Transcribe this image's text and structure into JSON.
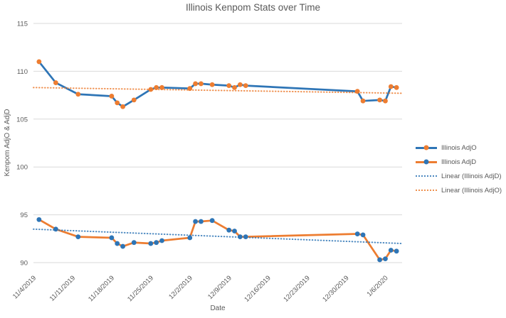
{
  "chart_data": {
    "type": "line",
    "title": "Illinois Kenpom Stats over Time",
    "xlabel": "Date",
    "ylabel": "Kenpom AdjO & AdjD",
    "ylim": [
      90,
      115
    ],
    "yticks": [
      115,
      110,
      105,
      100,
      95,
      90
    ],
    "grid": "horizontal-only",
    "legend_position": "right",
    "xticks": [
      "11/4/2019",
      "11/11/2019",
      "11/18/2019",
      "11/25/2019",
      "12/2/2019",
      "12/9/2019",
      "12/16/2019",
      "12/23/2019",
      "12/30/2019",
      "1/6/2020"
    ],
    "x_tick_days": [
      0,
      7,
      14,
      21,
      28,
      35,
      42,
      49,
      56,
      63
    ],
    "x_domain_days": [
      0,
      66
    ],
    "x_dates": [
      "11/5/2019",
      "11/8/2019",
      "11/12/2019",
      "11/18/2019",
      "11/19/2019",
      "11/20/2019",
      "11/22/2019",
      "11/25/2019",
      "11/26/2019",
      "11/27/2019",
      "12/2/2019",
      "12/3/2019",
      "12/4/2019",
      "12/6/2019",
      "12/9/2019",
      "12/10/2019",
      "12/11/2019",
      "12/12/2019",
      "1/1/2020",
      "1/2/2020",
      "1/5/2020",
      "1/6/2020",
      "1/7/2020",
      "1/8/2020"
    ],
    "x_days": [
      1,
      4,
      8,
      14,
      15,
      16,
      18,
      21,
      22,
      23,
      28,
      29,
      30,
      32,
      35,
      36,
      37,
      38,
      58,
      59,
      62,
      63,
      64,
      65
    ],
    "series": [
      {
        "name": "Illinois AdjO",
        "color": "#2E75B6",
        "marker_color": "#ED7D31",
        "values": [
          111.0,
          108.8,
          107.6,
          107.4,
          106.7,
          106.3,
          107.0,
          108.1,
          108.3,
          108.3,
          108.2,
          108.7,
          108.7,
          108.6,
          108.5,
          108.3,
          108.6,
          108.5,
          107.9,
          106.9,
          107.0,
          106.9,
          108.4,
          108.3
        ]
      },
      {
        "name": "Illinois AdjD",
        "color": "#ED7D31",
        "marker_color": "#2E75B6",
        "values": [
          94.5,
          93.5,
          92.7,
          92.6,
          92.0,
          91.7,
          92.1,
          92.0,
          92.1,
          92.3,
          92.6,
          94.3,
          94.3,
          94.4,
          93.4,
          93.3,
          92.7,
          92.7,
          93.0,
          92.9,
          90.3,
          90.4,
          91.3,
          91.2
        ]
      }
    ],
    "trendlines": [
      {
        "name": "Linear (Illinois AdjD)",
        "color": "#2E75B6",
        "start": 93.5,
        "end": 92.0
      },
      {
        "name": "Linear (Illinois AdjO)",
        "color": "#ED7D31",
        "start": 108.3,
        "end": 107.7
      }
    ],
    "legend": [
      {
        "label": "Illinois AdjO",
        "type": "line-marker",
        "line_color": "#2E75B6",
        "marker_color": "#ED7D31"
      },
      {
        "label": "Illinois AdjD",
        "type": "line-marker",
        "line_color": "#ED7D31",
        "marker_color": "#2E75B6"
      },
      {
        "label": "Linear (Illinois AdjD)",
        "type": "dotted",
        "line_color": "#2E75B6"
      },
      {
        "label": "Linear (Illinois AdjO)",
        "type": "dotted",
        "line_color": "#ED7D31"
      }
    ],
    "colors": {
      "gridline": "#D9D9D9",
      "text": "#595959",
      "background": "#FFFFFF"
    }
  }
}
